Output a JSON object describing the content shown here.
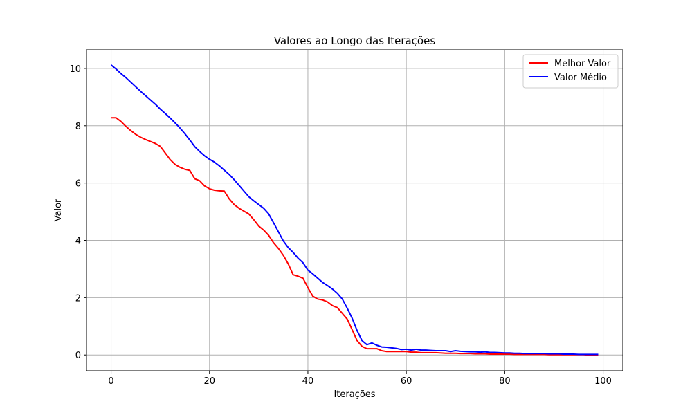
{
  "chart_data": {
    "type": "line",
    "title": "Valores ao Longo das Iterações",
    "xlabel": "Iterações",
    "ylabel": "Valor",
    "xlim": [
      -5,
      104
    ],
    "ylim": [
      -0.55,
      10.65
    ],
    "xticks": [
      0,
      20,
      40,
      60,
      80,
      100
    ],
    "yticks": [
      0,
      2,
      4,
      6,
      8,
      10
    ],
    "grid": true,
    "legend_position": "top-right",
    "series": [
      {
        "name": "Melhor Valor",
        "color": "#ff0000",
        "points": [
          [
            0,
            8.28
          ],
          [
            1,
            8.28
          ],
          [
            2,
            8.15
          ],
          [
            3,
            7.98
          ],
          [
            4,
            7.83
          ],
          [
            5,
            7.7
          ],
          [
            6,
            7.6
          ],
          [
            7,
            7.52
          ],
          [
            8,
            7.45
          ],
          [
            9,
            7.38
          ],
          [
            10,
            7.28
          ],
          [
            11,
            7.05
          ],
          [
            12,
            6.82
          ],
          [
            13,
            6.65
          ],
          [
            14,
            6.55
          ],
          [
            15,
            6.48
          ],
          [
            16,
            6.44
          ],
          [
            17,
            6.15
          ],
          [
            18,
            6.08
          ],
          [
            19,
            5.9
          ],
          [
            20,
            5.8
          ],
          [
            21,
            5.75
          ],
          [
            22,
            5.73
          ],
          [
            23,
            5.72
          ],
          [
            24,
            5.45
          ],
          [
            25,
            5.25
          ],
          [
            26,
            5.12
          ],
          [
            27,
            5.02
          ],
          [
            28,
            4.92
          ],
          [
            29,
            4.72
          ],
          [
            30,
            4.5
          ],
          [
            31,
            4.36
          ],
          [
            32,
            4.18
          ],
          [
            33,
            3.92
          ],
          [
            34,
            3.72
          ],
          [
            35,
            3.48
          ],
          [
            36,
            3.18
          ],
          [
            37,
            2.8
          ],
          [
            38,
            2.75
          ],
          [
            39,
            2.68
          ],
          [
            40,
            2.35
          ],
          [
            41,
            2.05
          ],
          [
            42,
            1.95
          ],
          [
            43,
            1.92
          ],
          [
            44,
            1.85
          ],
          [
            45,
            1.72
          ],
          [
            46,
            1.65
          ],
          [
            47,
            1.45
          ],
          [
            48,
            1.25
          ],
          [
            49,
            0.88
          ],
          [
            50,
            0.5
          ],
          [
            51,
            0.3
          ],
          [
            52,
            0.22
          ],
          [
            53,
            0.22
          ],
          [
            54,
            0.22
          ],
          [
            55,
            0.15
          ],
          [
            56,
            0.12
          ],
          [
            57,
            0.12
          ],
          [
            58,
            0.12
          ],
          [
            59,
            0.12
          ],
          [
            60,
            0.12
          ],
          [
            61,
            0.1
          ],
          [
            62,
            0.1
          ],
          [
            63,
            0.08
          ],
          [
            64,
            0.08
          ],
          [
            65,
            0.08
          ],
          [
            66,
            0.08
          ],
          [
            67,
            0.07
          ],
          [
            68,
            0.06
          ],
          [
            69,
            0.06
          ],
          [
            70,
            0.06
          ],
          [
            71,
            0.05
          ],
          [
            72,
            0.05
          ],
          [
            73,
            0.05
          ],
          [
            74,
            0.04
          ],
          [
            75,
            0.04
          ],
          [
            76,
            0.04
          ],
          [
            77,
            0.03
          ],
          [
            78,
            0.03
          ],
          [
            79,
            0.03
          ],
          [
            80,
            0.03
          ],
          [
            81,
            0.03
          ],
          [
            82,
            0.02
          ],
          [
            83,
            0.02
          ],
          [
            84,
            0.02
          ],
          [
            85,
            0.02
          ],
          [
            86,
            0.02
          ],
          [
            87,
            0.02
          ],
          [
            88,
            0.02
          ],
          [
            89,
            0.01
          ],
          [
            90,
            0.01
          ],
          [
            91,
            0.01
          ],
          [
            92,
            0.01
          ],
          [
            93,
            0.01
          ],
          [
            94,
            0.01
          ],
          [
            95,
            0.01
          ],
          [
            96,
            0.01
          ],
          [
            97,
            0.0
          ],
          [
            98,
            0.0
          ],
          [
            99,
            0.0
          ]
        ]
      },
      {
        "name": "Valor Médio",
        "color": "#0000ff",
        "points": [
          [
            0,
            10.12
          ],
          [
            1,
            9.98
          ],
          [
            2,
            9.82
          ],
          [
            3,
            9.68
          ],
          [
            4,
            9.52
          ],
          [
            5,
            9.36
          ],
          [
            6,
            9.2
          ],
          [
            7,
            9.05
          ],
          [
            8,
            8.9
          ],
          [
            9,
            8.75
          ],
          [
            10,
            8.58
          ],
          [
            11,
            8.43
          ],
          [
            12,
            8.27
          ],
          [
            13,
            8.1
          ],
          [
            14,
            7.92
          ],
          [
            15,
            7.72
          ],
          [
            16,
            7.5
          ],
          [
            17,
            7.27
          ],
          [
            18,
            7.1
          ],
          [
            19,
            6.95
          ],
          [
            20,
            6.83
          ],
          [
            21,
            6.73
          ],
          [
            22,
            6.6
          ],
          [
            23,
            6.45
          ],
          [
            24,
            6.3
          ],
          [
            25,
            6.12
          ],
          [
            26,
            5.92
          ],
          [
            27,
            5.72
          ],
          [
            28,
            5.52
          ],
          [
            29,
            5.38
          ],
          [
            30,
            5.25
          ],
          [
            31,
            5.12
          ],
          [
            32,
            4.93
          ],
          [
            33,
            4.62
          ],
          [
            34,
            4.3
          ],
          [
            35,
            3.98
          ],
          [
            36,
            3.75
          ],
          [
            37,
            3.58
          ],
          [
            38,
            3.38
          ],
          [
            39,
            3.22
          ],
          [
            40,
            2.96
          ],
          [
            41,
            2.83
          ],
          [
            42,
            2.68
          ],
          [
            43,
            2.53
          ],
          [
            44,
            2.42
          ],
          [
            45,
            2.3
          ],
          [
            46,
            2.15
          ],
          [
            47,
            1.95
          ],
          [
            48,
            1.63
          ],
          [
            49,
            1.28
          ],
          [
            50,
            0.85
          ],
          [
            51,
            0.5
          ],
          [
            52,
            0.36
          ],
          [
            53,
            0.42
          ],
          [
            54,
            0.34
          ],
          [
            55,
            0.28
          ],
          [
            56,
            0.27
          ],
          [
            57,
            0.25
          ],
          [
            58,
            0.23
          ],
          [
            59,
            0.19
          ],
          [
            60,
            0.2
          ],
          [
            61,
            0.17
          ],
          [
            62,
            0.2
          ],
          [
            63,
            0.17
          ],
          [
            64,
            0.17
          ],
          [
            65,
            0.16
          ],
          [
            66,
            0.15
          ],
          [
            67,
            0.15
          ],
          [
            68,
            0.15
          ],
          [
            69,
            0.12
          ],
          [
            70,
            0.15
          ],
          [
            71,
            0.13
          ],
          [
            72,
            0.12
          ],
          [
            73,
            0.11
          ],
          [
            74,
            0.11
          ],
          [
            75,
            0.1
          ],
          [
            76,
            0.11
          ],
          [
            77,
            0.09
          ],
          [
            78,
            0.09
          ],
          [
            79,
            0.08
          ],
          [
            80,
            0.07
          ],
          [
            81,
            0.07
          ],
          [
            82,
            0.06
          ],
          [
            83,
            0.06
          ],
          [
            84,
            0.05
          ],
          [
            85,
            0.05
          ],
          [
            86,
            0.05
          ],
          [
            87,
            0.05
          ],
          [
            88,
            0.05
          ],
          [
            89,
            0.04
          ],
          [
            90,
            0.04
          ],
          [
            91,
            0.04
          ],
          [
            92,
            0.03
          ],
          [
            93,
            0.03
          ],
          [
            94,
            0.03
          ],
          [
            95,
            0.02
          ],
          [
            96,
            0.02
          ],
          [
            97,
            0.02
          ],
          [
            98,
            0.02
          ],
          [
            99,
            0.02
          ]
        ]
      }
    ]
  }
}
